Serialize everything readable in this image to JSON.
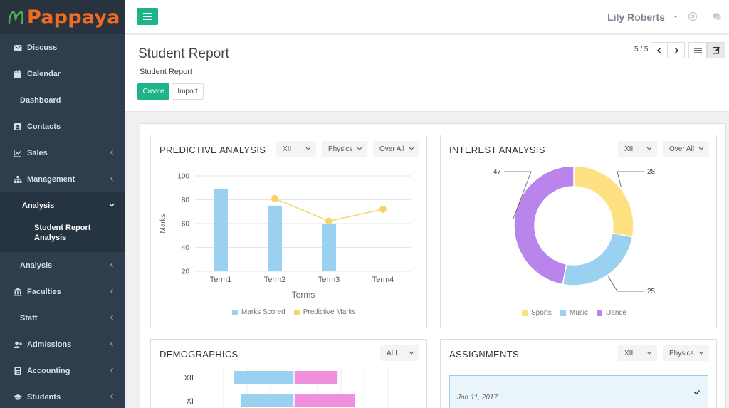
{
  "app": {
    "name": "Pappaya"
  },
  "sidebar": {
    "items": [
      {
        "label": "Discuss",
        "icon": "envelope-icon"
      },
      {
        "label": "Calendar",
        "icon": "calendar-icon"
      },
      {
        "label": "Dashboard",
        "icon": ""
      },
      {
        "label": "Contacts",
        "icon": "contact-card-icon"
      },
      {
        "label": "Sales",
        "icon": "line-chart-icon"
      },
      {
        "label": "Management",
        "icon": "sitemap-icon"
      },
      {
        "label": "Analysis",
        "icon": ""
      },
      {
        "label": "Analysis",
        "icon": ""
      },
      {
        "label": "Faculties",
        "icon": "bank-icon"
      },
      {
        "label": "Staff",
        "icon": ""
      },
      {
        "label": "Admissions",
        "icon": "user-plus-icon"
      },
      {
        "label": "Accounting",
        "icon": "calculator-icon"
      },
      {
        "label": "Students",
        "icon": "graduation-cap-icon"
      }
    ],
    "sub_item": "Student Report Analysis"
  },
  "topbar": {
    "user_name": "Lily Roberts"
  },
  "header": {
    "title": "Student Report",
    "subtitle": "Student Report",
    "create_label": "Create",
    "import_label": "Import",
    "pager": "5 / 5"
  },
  "panels": {
    "predictive": {
      "title": "PREDICTIVE ANALYSIS",
      "filters": [
        "XII",
        "Physics",
        "Over All"
      ]
    },
    "interest": {
      "title": "INTEREST ANALYSIS",
      "filters": [
        "XII",
        "Over All"
      ]
    },
    "demographics": {
      "title": "DEMOGRAPHICS",
      "filters": [
        "ALL"
      ]
    },
    "assignments": {
      "title": "ASSIGNMENTS",
      "filters": [
        "XII",
        "Physics"
      ],
      "items": [
        {
          "date": "Jan 11, 2017"
        }
      ]
    }
  },
  "chart_data": [
    {
      "type": "bar",
      "categories": [
        "Term1",
        "Term2",
        "Term3",
        "Term4"
      ],
      "series": [
        {
          "name": "Marks Scored",
          "values": [
            89,
            75,
            60,
            null
          ],
          "color": "#9ad0f0"
        },
        {
          "name": "Predictive Marks",
          "values": [
            null,
            81,
            62,
            72
          ],
          "color": "#f7d564"
        }
      ],
      "xlabel": "Terms",
      "ylabel": "Marks",
      "ylim": [
        20,
        100
      ],
      "yticks": [
        20,
        40,
        60,
        80,
        100
      ]
    },
    {
      "type": "pie",
      "categories": [
        "Sports",
        "Music",
        "Dance"
      ],
      "values": [
        28,
        25,
        47
      ],
      "colors": [
        "#fde080",
        "#9ad0f0",
        "#b985ec"
      ],
      "donut": true
    },
    {
      "type": "bar",
      "orientation": "horizontal",
      "categories": [
        "XII",
        "XI"
      ],
      "series": [
        {
          "name": "",
          "values": [
            -25,
            -22
          ],
          "color": "#9ad0f0"
        },
        {
          "name": "",
          "values": [
            18,
            25
          ],
          "color": "#f08fdd"
        }
      ]
    }
  ]
}
